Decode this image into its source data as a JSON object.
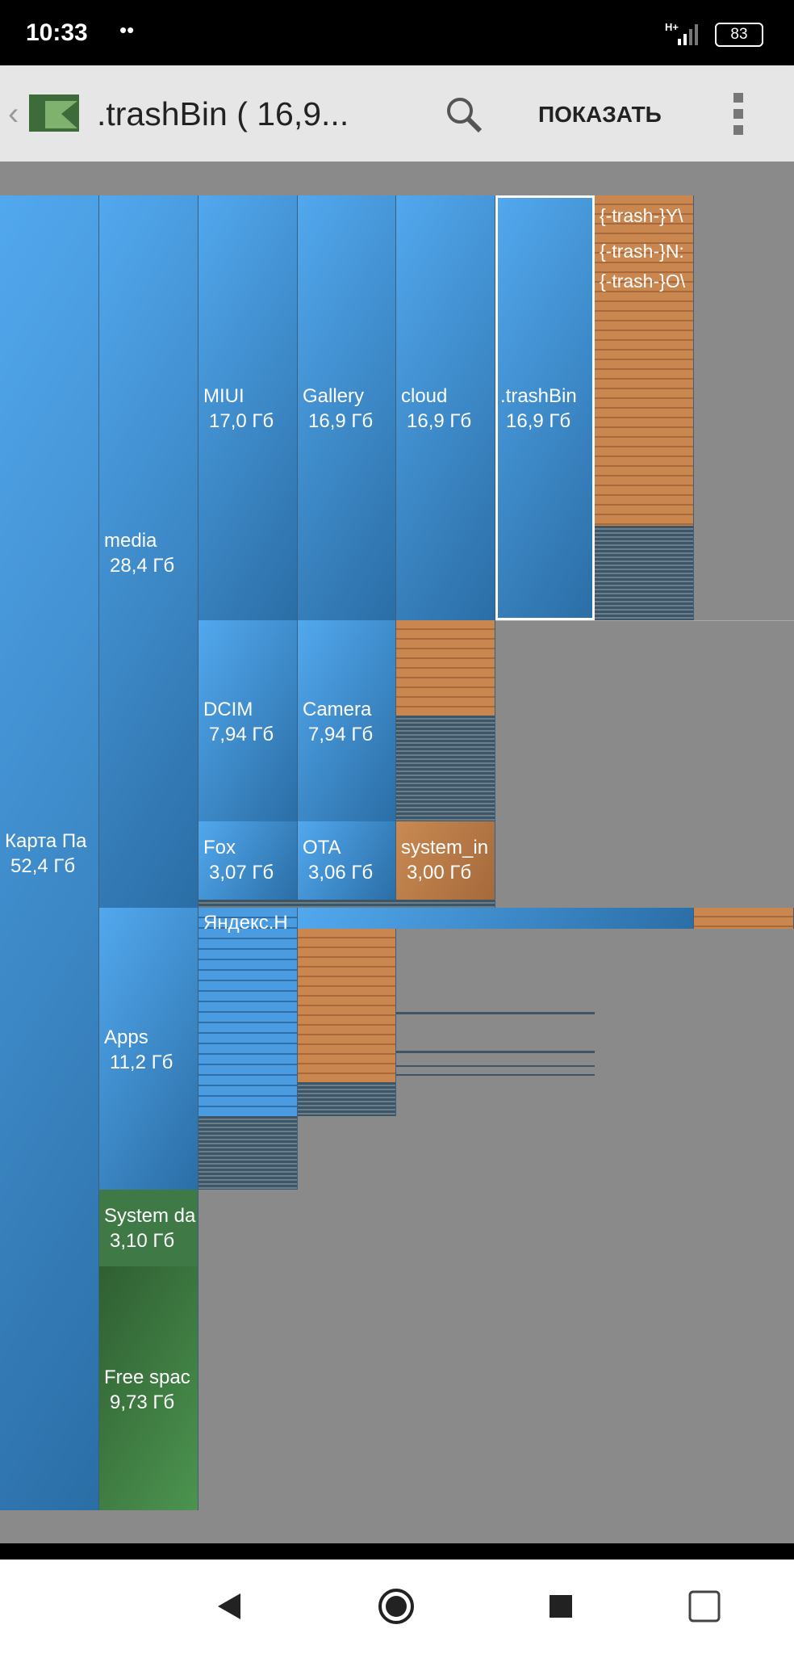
{
  "status_bar": {
    "time": "10:33",
    "network": "H+",
    "battery": "83"
  },
  "toolbar": {
    "title": ".trashBin ( 16,9...",
    "action": "ПОКАЗАТЬ"
  },
  "treemap": {
    "blocks": [
      {
        "name": "Карта Па",
        "size": "52,4 Гб"
      },
      {
        "name": "media",
        "size": "28,4 Гб"
      },
      {
        "name": "MIUI",
        "size": "17,0 Гб"
      },
      {
        "name": "Gallery",
        "size": "16,9 Гб"
      },
      {
        "name": "cloud",
        "size": "16,9 Гб"
      },
      {
        "name": ".trashBin",
        "size": "16,9 Гб"
      },
      {
        "name": "DCIM",
        "size": "7,94 Гб"
      },
      {
        "name": "Camera",
        "size": "7,94 Гб"
      },
      {
        "name": "Fox",
        "size": "3,07 Гб"
      },
      {
        "name": "OTA",
        "size": "3,06 Гб"
      },
      {
        "name": "system_in",
        "size": "3,00 Гб"
      },
      {
        "name": "Apps",
        "size": "11,2 Гб"
      },
      {
        "name": "System da",
        "size": "3,10 Гб"
      },
      {
        "name": "Free spac",
        "size": "9,73 Гб"
      },
      {
        "name": "Яндекс.H"
      }
    ],
    "files": [
      "{-trash-}Y\\",
      "{-trash-}N:",
      "{-trash-}O\\"
    ]
  }
}
